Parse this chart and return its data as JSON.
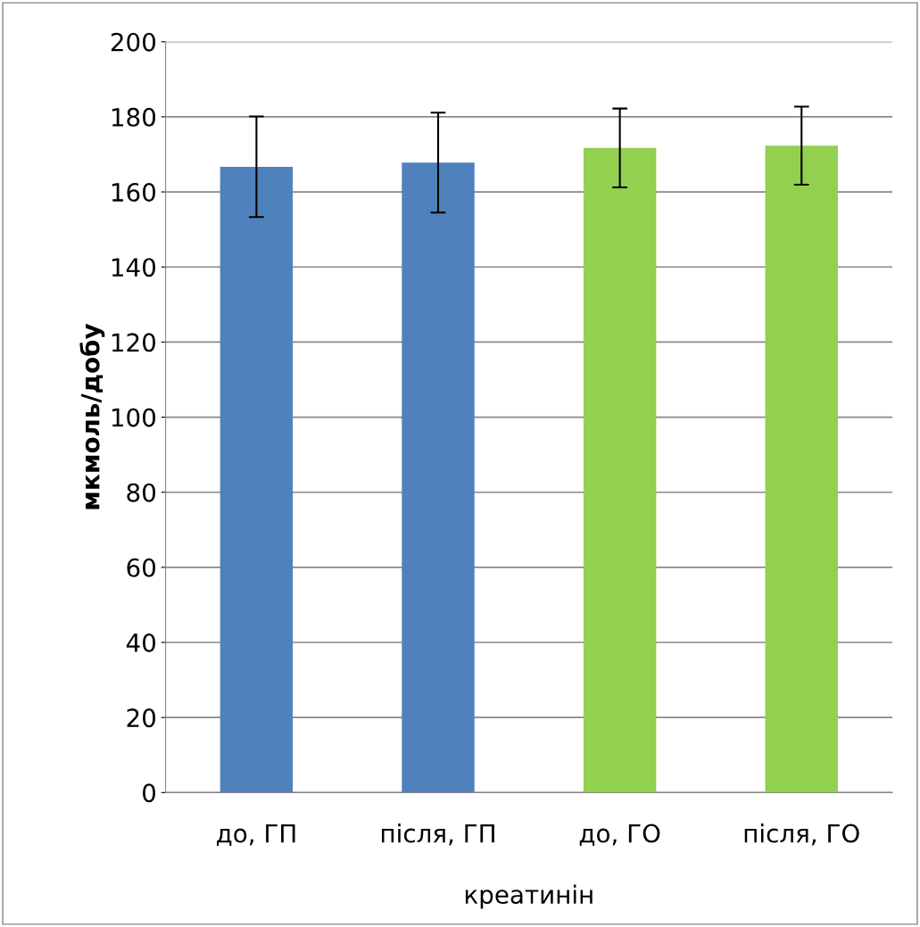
{
  "chart_data": {
    "type": "bar",
    "ylabel": "мкмоль/добу",
    "xlabel": "креатинін",
    "categories": [
      "до, ГП",
      "після, ГП",
      "до, ГО",
      "після, ГО"
    ],
    "values": [
      166.7,
      167.8,
      171.7,
      172.3
    ],
    "errors": [
      13.4,
      13.3,
      10.5,
      10.4
    ],
    "colors": [
      "#4f81bd",
      "#4f81bd",
      "#92d050",
      "#92d050"
    ],
    "ylim": [
      0,
      200
    ],
    "yticks": [
      0,
      20,
      40,
      60,
      80,
      100,
      120,
      140,
      160,
      180,
      200
    ],
    "grid": "y",
    "legend": false
  }
}
